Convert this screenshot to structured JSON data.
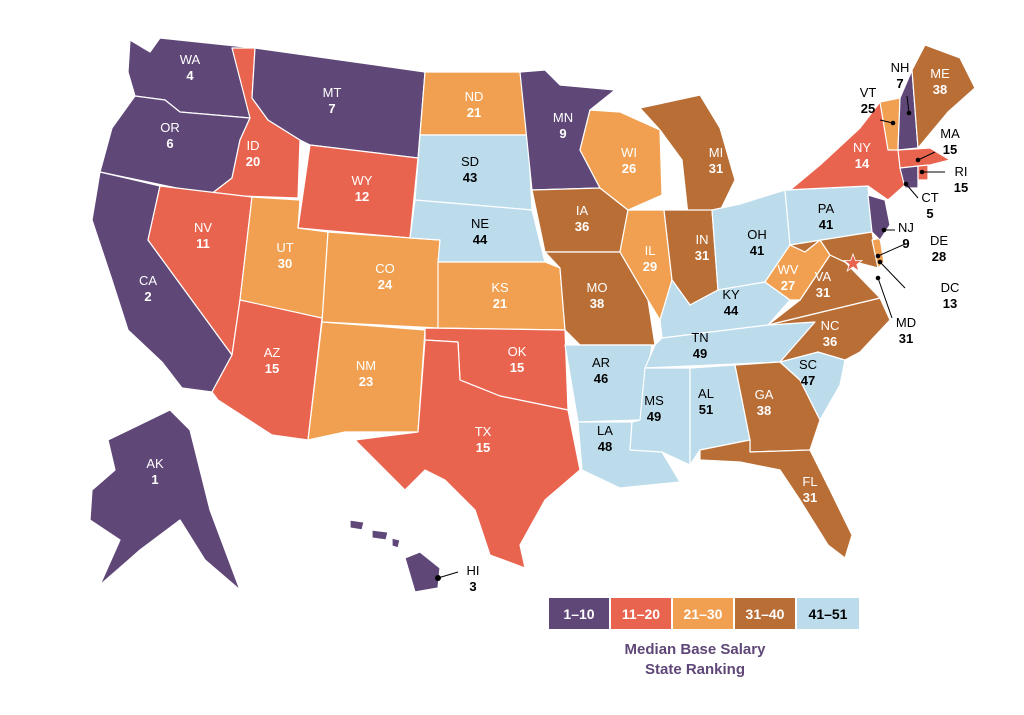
{
  "colors": {
    "b1": "#5f4778",
    "b2": "#e9644f",
    "b3": "#f0a050",
    "b4": "#b96e35",
    "b5": "#bcdcec",
    "caption": "#5f4778",
    "star": "#e9644f"
  },
  "legend": [
    {
      "label": "1–10",
      "color": "#5f4778",
      "text_color": "#ffffff"
    },
    {
      "label": "11–20",
      "color": "#e9644f",
      "text_color": "#ffffff"
    },
    {
      "label": "21–30",
      "color": "#f0a050",
      "text_color": "#ffffff"
    },
    {
      "label": "31–40",
      "color": "#b96e35",
      "text_color": "#ffffff"
    },
    {
      "label": "41–51",
      "color": "#bcdcec",
      "text_color": "#000000"
    }
  ],
  "caption": {
    "line1": "Median Base Salary",
    "line2": "State Ranking"
  },
  "states": [
    {
      "abbr": "WA",
      "rank": "4"
    },
    {
      "abbr": "OR",
      "rank": "6"
    },
    {
      "abbr": "CA",
      "rank": "2"
    },
    {
      "abbr": "ID",
      "rank": "20"
    },
    {
      "abbr": "NV",
      "rank": "11"
    },
    {
      "abbr": "MT",
      "rank": "7"
    },
    {
      "abbr": "WY",
      "rank": "12"
    },
    {
      "abbr": "UT",
      "rank": "30"
    },
    {
      "abbr": "AZ",
      "rank": "15"
    },
    {
      "abbr": "CO",
      "rank": "24"
    },
    {
      "abbr": "NM",
      "rank": "23"
    },
    {
      "abbr": "ND",
      "rank": "21"
    },
    {
      "abbr": "SD",
      "rank": "43"
    },
    {
      "abbr": "NE",
      "rank": "44"
    },
    {
      "abbr": "KS",
      "rank": "21"
    },
    {
      "abbr": "OK",
      "rank": "15"
    },
    {
      "abbr": "TX",
      "rank": "15"
    },
    {
      "abbr": "MN",
      "rank": "9"
    },
    {
      "abbr": "IA",
      "rank": "36"
    },
    {
      "abbr": "MO",
      "rank": "38"
    },
    {
      "abbr": "AR",
      "rank": "46"
    },
    {
      "abbr": "LA",
      "rank": "48"
    },
    {
      "abbr": "WI",
      "rank": "26"
    },
    {
      "abbr": "IL",
      "rank": "29"
    },
    {
      "abbr": "MI",
      "rank": "31"
    },
    {
      "abbr": "IN",
      "rank": "31"
    },
    {
      "abbr": "OH",
      "rank": "41"
    },
    {
      "abbr": "KY",
      "rank": "44"
    },
    {
      "abbr": "TN",
      "rank": "49"
    },
    {
      "abbr": "MS",
      "rank": "49"
    },
    {
      "abbr": "AL",
      "rank": "51"
    },
    {
      "abbr": "GA",
      "rank": "38"
    },
    {
      "abbr": "FL",
      "rank": "31"
    },
    {
      "abbr": "SC",
      "rank": "47"
    },
    {
      "abbr": "NC",
      "rank": "36"
    },
    {
      "abbr": "VA",
      "rank": "31"
    },
    {
      "abbr": "WV",
      "rank": "27"
    },
    {
      "abbr": "PA",
      "rank": "41"
    },
    {
      "abbr": "NY",
      "rank": "14"
    },
    {
      "abbr": "ME",
      "rank": "38"
    },
    {
      "abbr": "AK",
      "rank": "1"
    },
    {
      "abbr": "HI",
      "rank": "3"
    },
    {
      "abbr": "NH",
      "rank": "7"
    },
    {
      "abbr": "VT",
      "rank": "25"
    },
    {
      "abbr": "MA",
      "rank": "15"
    },
    {
      "abbr": "RI",
      "rank": "15"
    },
    {
      "abbr": "CT",
      "rank": "5"
    },
    {
      "abbr": "NJ",
      "rank": "9"
    },
    {
      "abbr": "DE",
      "rank": "28"
    },
    {
      "abbr": "DC",
      "rank": "13"
    },
    {
      "abbr": "MD",
      "rank": "31"
    }
  ]
}
